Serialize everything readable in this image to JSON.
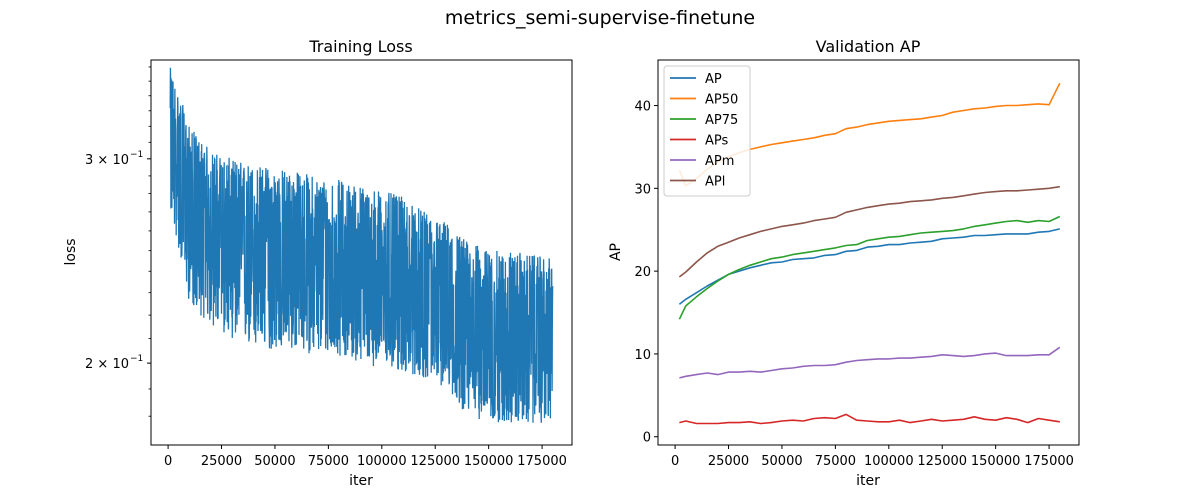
{
  "suptitle": "metrics_semi-supervise-finetune",
  "chart_data": [
    {
      "type": "line",
      "title": "Training Loss",
      "xlabel": "iter",
      "ylabel": "loss",
      "yscale": "log",
      "xlim": [
        -8000,
        189000
      ],
      "ylim": [
        0.17,
        0.365
      ],
      "xticks": [
        0,
        25000,
        50000,
        75000,
        100000,
        125000,
        150000,
        175000
      ],
      "xtick_labels": [
        "0",
        "25000",
        "50000",
        "75000",
        "100000",
        "125000",
        "150000",
        "175000"
      ],
      "yticks": [
        0.2,
        0.3
      ],
      "ytick_labels": [
        "2 × 10",
        "3 × 10"
      ],
      "ytick_exponent": "−1",
      "color": "#1f77b4",
      "series": [
        {
          "x": [
            1000,
            10000,
            20000,
            30000,
            40000,
            50000,
            60000,
            70000,
            80000,
            90000,
            100000,
            110000,
            120000,
            130000,
            140000,
            150000,
            160000,
            170000,
            180000
          ],
          "values": [
            0.31,
            0.268,
            0.257,
            0.253,
            0.25,
            0.247,
            0.245,
            0.243,
            0.241,
            0.239,
            0.236,
            0.232,
            0.229,
            0.224,
            0.218,
            0.214,
            0.212,
            0.211,
            0.21
          ],
          "low": [
            0.27,
            0.225,
            0.215,
            0.21,
            0.205,
            0.205,
            0.205,
            0.203,
            0.203,
            0.2,
            0.198,
            0.196,
            0.194,
            0.19,
            0.18,
            0.178,
            0.177,
            0.177,
            0.178
          ],
          "high": [
            0.36,
            0.32,
            0.305,
            0.3,
            0.297,
            0.295,
            0.293,
            0.29,
            0.288,
            0.285,
            0.282,
            0.278,
            0.27,
            0.265,
            0.255,
            0.25,
            0.25,
            0.248,
            0.246
          ]
        }
      ]
    },
    {
      "type": "line",
      "title": "Validation AP",
      "xlabel": "iter",
      "ylabel": "AP",
      "xlim": [
        -8000,
        189000
      ],
      "ylim": [
        -1,
        45.5
      ],
      "xticks": [
        0,
        25000,
        50000,
        75000,
        100000,
        125000,
        150000,
        175000
      ],
      "xtick_labels": [
        "0",
        "25000",
        "50000",
        "75000",
        "100000",
        "125000",
        "150000",
        "175000"
      ],
      "yticks": [
        0,
        10,
        20,
        30,
        40
      ],
      "ytick_labels": [
        "0",
        "10",
        "20",
        "30",
        "40"
      ],
      "legend_position": "upper-left",
      "x": [
        2000,
        5000,
        10000,
        15000,
        20000,
        25000,
        30000,
        35000,
        40000,
        45000,
        50000,
        55000,
        60000,
        65000,
        70000,
        75000,
        80000,
        85000,
        90000,
        95000,
        100000,
        105000,
        110000,
        115000,
        120000,
        125000,
        130000,
        135000,
        140000,
        145000,
        150000,
        155000,
        160000,
        165000,
        170000,
        175000,
        180000
      ],
      "series": [
        {
          "name": "AP",
          "color": "#1f77b4",
          "values": [
            16.0,
            16.6,
            17.4,
            18.2,
            18.9,
            19.6,
            20.0,
            20.4,
            20.7,
            21.0,
            21.1,
            21.4,
            21.5,
            21.6,
            21.9,
            22.0,
            22.4,
            22.5,
            22.9,
            23.0,
            23.2,
            23.2,
            23.4,
            23.5,
            23.6,
            23.9,
            24.0,
            24.1,
            24.3,
            24.3,
            24.4,
            24.5,
            24.5,
            24.5,
            24.7,
            24.8,
            25.1
          ]
        },
        {
          "name": "AP50",
          "color": "#ff7f0e",
          "values": [
            32.2,
            30.3,
            31.2,
            32.3,
            33.2,
            33.8,
            34.3,
            34.7,
            35.0,
            35.3,
            35.5,
            35.7,
            35.9,
            36.1,
            36.4,
            36.6,
            37.2,
            37.4,
            37.7,
            37.9,
            38.1,
            38.2,
            38.3,
            38.4,
            38.6,
            38.8,
            39.2,
            39.4,
            39.6,
            39.7,
            39.9,
            40.0,
            40.0,
            40.1,
            40.2,
            40.1,
            42.7
          ]
        },
        {
          "name": "AP75",
          "color": "#2ca02c",
          "values": [
            14.2,
            15.8,
            16.9,
            17.9,
            18.8,
            19.6,
            20.2,
            20.7,
            21.1,
            21.5,
            21.7,
            22.0,
            22.2,
            22.4,
            22.6,
            22.8,
            23.1,
            23.2,
            23.7,
            23.9,
            24.1,
            24.2,
            24.4,
            24.6,
            24.7,
            24.8,
            24.9,
            25.1,
            25.4,
            25.6,
            25.8,
            26.0,
            26.1,
            25.9,
            26.1,
            26.0,
            26.6
          ]
        },
        {
          "name": "APs",
          "color": "#d62728",
          "values": [
            1.7,
            1.9,
            1.6,
            1.6,
            1.6,
            1.7,
            1.7,
            1.8,
            1.6,
            1.7,
            1.9,
            2.0,
            1.9,
            2.2,
            2.3,
            2.2,
            2.7,
            2.0,
            1.9,
            1.8,
            1.8,
            2.0,
            1.7,
            1.9,
            2.1,
            1.9,
            2.0,
            2.1,
            2.4,
            2.1,
            2.0,
            2.3,
            2.1,
            1.7,
            2.2,
            2.0,
            1.8
          ]
        },
        {
          "name": "APm",
          "color": "#9467bd",
          "values": [
            7.1,
            7.3,
            7.5,
            7.7,
            7.5,
            7.8,
            7.8,
            7.9,
            7.8,
            8.0,
            8.2,
            8.3,
            8.5,
            8.6,
            8.6,
            8.7,
            9.0,
            9.2,
            9.3,
            9.4,
            9.4,
            9.5,
            9.5,
            9.6,
            9.7,
            9.9,
            9.8,
            9.7,
            9.8,
            10.0,
            10.1,
            9.8,
            9.8,
            9.8,
            9.9,
            9.9,
            10.8
          ]
        },
        {
          "name": "APl",
          "color": "#8c564b",
          "values": [
            19.3,
            19.9,
            21.1,
            22.2,
            23.0,
            23.5,
            24.0,
            24.4,
            24.8,
            25.1,
            25.4,
            25.6,
            25.8,
            26.1,
            26.3,
            26.5,
            27.1,
            27.4,
            27.7,
            27.9,
            28.1,
            28.2,
            28.4,
            28.5,
            28.6,
            28.8,
            28.9,
            29.1,
            29.3,
            29.5,
            29.6,
            29.7,
            29.7,
            29.8,
            29.9,
            30.0,
            30.2
          ]
        }
      ]
    }
  ]
}
